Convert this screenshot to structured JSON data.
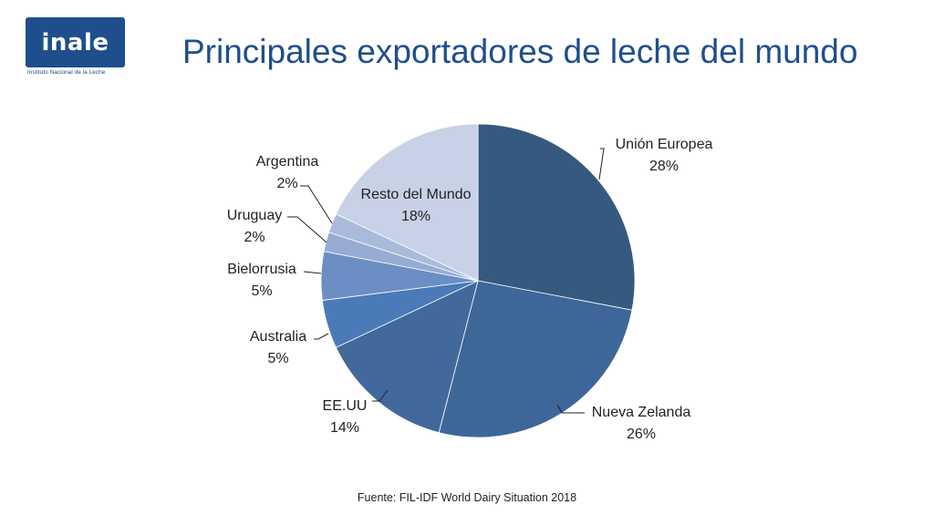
{
  "logo": {
    "word": "inale",
    "subtitle": "Instituto Nacional de la Leche"
  },
  "title": "Principales exportadores de leche del mundo",
  "source": "Fuente: FIL-IDF World Dairy Situation 2018",
  "chart_data": {
    "type": "pie",
    "categories": [
      "Unión Europea",
      "Nueva Zelanda",
      "EE.UU",
      "Australia",
      "Bielorrusia",
      "Uruguay",
      "Argentina",
      "Resto del Mundo"
    ],
    "values": [
      28,
      26,
      14,
      5,
      5,
      2,
      2,
      18
    ],
    "value_labels": [
      "28%",
      "26%",
      "14%",
      "5%",
      "5%",
      "2%",
      "2%",
      "18%"
    ],
    "colors": [
      "#36597f",
      "#3d6799",
      "#42699c",
      "#4a7ab8",
      "#6b8ec4",
      "#97acd2",
      "#a9bbdb",
      "#c8d1e5"
    ]
  }
}
